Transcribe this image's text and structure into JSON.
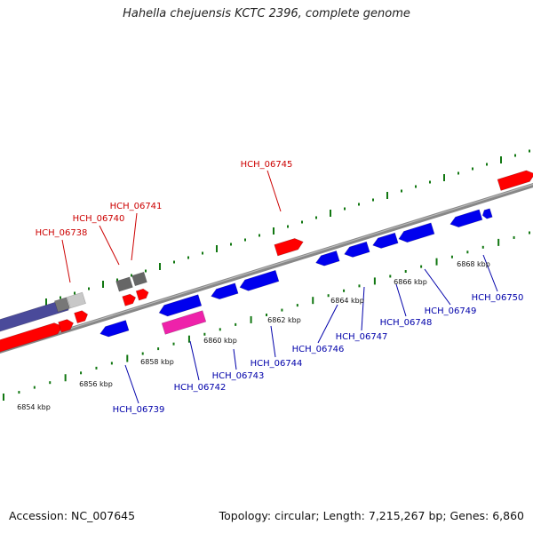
{
  "title": "Hahella chejuensis KCTC 2396, complete genome",
  "footer": {
    "accession": "Accession: NC_007645",
    "topology": "Topology: circular; Length: 7,215,267 bp; Genes: 6,860"
  },
  "colors": {
    "forward_gene": "#ff0000",
    "reverse_gene": "#0000ee",
    "special_gene": "#ee22aa",
    "backbone": "#888888",
    "ticks": "#117711",
    "red_label": "#cc0000",
    "blue_label": "#0000aa"
  },
  "scale_labels": [
    "6854 kbp",
    "6856 kbp",
    "6858 kbp",
    "6860 kbp",
    "6862 kbp",
    "6864 kbp",
    "6866 kbp",
    "6868 kbp"
  ],
  "labels_forward": [
    "HCH_06738",
    "HCH_06740",
    "HCH_06741",
    "HCH_06745"
  ],
  "labels_reverse": [
    "HCH_06739",
    "HCH_06742",
    "HCH_06743",
    "HCH_06744",
    "HCH_06746",
    "HCH_06747",
    "HCH_06748",
    "HCH_06749",
    "HCH_06750"
  ]
}
